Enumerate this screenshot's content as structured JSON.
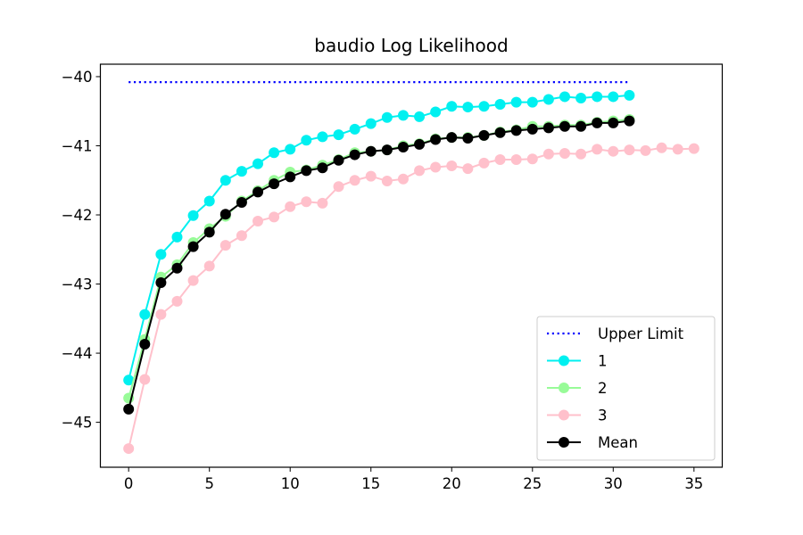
{
  "chart_data": {
    "type": "line",
    "title": "baudio Log Likelihood",
    "xlabel": "",
    "ylabel": "",
    "xlim": [
      -1.75,
      36.75
    ],
    "ylim": [
      -45.65,
      -39.82
    ],
    "x_ticks": [
      0,
      5,
      10,
      15,
      20,
      25,
      30,
      35
    ],
    "x_tick_labels": [
      "0",
      "5",
      "10",
      "15",
      "20",
      "25",
      "30",
      "35"
    ],
    "y_ticks": [
      -45,
      -44,
      -43,
      -42,
      -41,
      -40
    ],
    "y_tick_labels": [
      "−45",
      "−44",
      "−43",
      "−42",
      "−41",
      "−40"
    ],
    "grid": false,
    "legend_position": "lower-right",
    "upper_limit": {
      "name": "Upper Limit",
      "x": [
        0,
        31
      ],
      "y": [
        -40.08,
        -40.08
      ],
      "color": "#0000ff",
      "style": "dotted"
    },
    "series": [
      {
        "name": "1",
        "color": "#00f0f0",
        "x": [
          0,
          1,
          2,
          3,
          4,
          5,
          6,
          7,
          8,
          9,
          10,
          11,
          12,
          13,
          14,
          15,
          16,
          17,
          18,
          19,
          20,
          21,
          22,
          23,
          24,
          25,
          26,
          27,
          28,
          29,
          30,
          31
        ],
        "y": [
          -44.39,
          -43.44,
          -42.57,
          -42.32,
          -42.01,
          -41.8,
          -41.5,
          -41.37,
          -41.26,
          -41.1,
          -41.05,
          -40.92,
          -40.87,
          -40.84,
          -40.76,
          -40.68,
          -40.59,
          -40.56,
          -40.58,
          -40.51,
          -40.43,
          -40.44,
          -40.43,
          -40.4,
          -40.37,
          -40.37,
          -40.33,
          -40.29,
          -40.31,
          -40.29,
          -40.29,
          -40.27
        ]
      },
      {
        "name": "2",
        "color": "#98fb98",
        "x": [
          0,
          1,
          2,
          3,
          4,
          5,
          6,
          7,
          8,
          9,
          10,
          11,
          12,
          13,
          14,
          15,
          16,
          17,
          18,
          19,
          20,
          21,
          22,
          23,
          24,
          25,
          26,
          27,
          28,
          29,
          30,
          31
        ],
        "y": [
          -44.65,
          -43.8,
          -42.9,
          -42.72,
          -42.4,
          -42.2,
          -42.02,
          -41.8,
          -41.65,
          -41.5,
          -41.38,
          -41.35,
          -41.28,
          -41.2,
          -41.1,
          -41.08,
          -41.06,
          -41.0,
          -40.97,
          -40.9,
          -40.88,
          -40.88,
          -40.85,
          -40.8,
          -40.77,
          -40.72,
          -40.72,
          -40.7,
          -40.7,
          -40.66,
          -40.64,
          -40.62
        ]
      },
      {
        "name": "3",
        "color": "#ffc0cb",
        "x": [
          0,
          1,
          2,
          3,
          4,
          5,
          6,
          7,
          8,
          9,
          10,
          11,
          12,
          13,
          14,
          15,
          16,
          17,
          18,
          19,
          20,
          21,
          22,
          23,
          24,
          25,
          26,
          27,
          28,
          29,
          30,
          31,
          32,
          33,
          34,
          35
        ],
        "y": [
          -45.38,
          -44.38,
          -43.44,
          -43.25,
          -42.95,
          -42.74,
          -42.44,
          -42.3,
          -42.09,
          -42.03,
          -41.88,
          -41.81,
          -41.83,
          -41.59,
          -41.5,
          -41.44,
          -41.51,
          -41.48,
          -41.36,
          -41.31,
          -41.29,
          -41.33,
          -41.25,
          -41.2,
          -41.2,
          -41.19,
          -41.12,
          -41.11,
          -41.12,
          -41.05,
          -41.08,
          -41.06,
          -41.07,
          -41.03,
          -41.05,
          -41.04
        ]
      },
      {
        "name": "Mean",
        "color": "#000000",
        "x": [
          0,
          1,
          2,
          3,
          4,
          5,
          6,
          7,
          8,
          9,
          10,
          11,
          12,
          13,
          14,
          15,
          16,
          17,
          18,
          19,
          20,
          21,
          22,
          23,
          24,
          25,
          26,
          27,
          28,
          29,
          30,
          31
        ],
        "y": [
          -44.81,
          -43.87,
          -42.98,
          -42.77,
          -42.46,
          -42.25,
          -41.99,
          -41.82,
          -41.67,
          -41.55,
          -41.45,
          -41.36,
          -41.32,
          -41.21,
          -41.13,
          -41.08,
          -41.06,
          -41.02,
          -40.98,
          -40.91,
          -40.88,
          -40.89,
          -40.85,
          -40.81,
          -40.78,
          -40.76,
          -40.74,
          -40.72,
          -40.72,
          -40.67,
          -40.67,
          -40.64
        ]
      }
    ],
    "legend": [
      {
        "label": "Upper Limit",
        "color": "#0000ff",
        "style": "dotted",
        "marker": false
      },
      {
        "label": "1",
        "color": "#00f0f0",
        "style": "solid",
        "marker": true
      },
      {
        "label": "2",
        "color": "#98fb98",
        "style": "solid",
        "marker": true
      },
      {
        "label": "3",
        "color": "#ffc0cb",
        "style": "solid",
        "marker": true
      },
      {
        "label": "Mean",
        "color": "#000000",
        "style": "solid",
        "marker": true
      }
    ]
  }
}
